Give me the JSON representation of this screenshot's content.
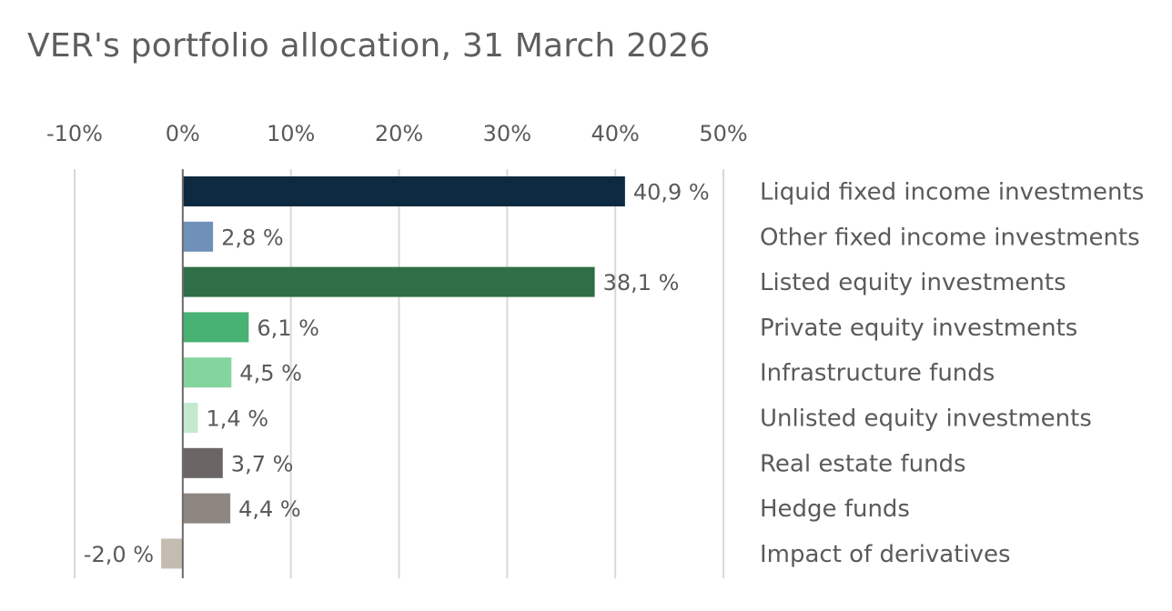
{
  "chart_data": {
    "type": "bar",
    "orientation": "horizontal",
    "title": "VER's portfolio allocation, 31 March 2026",
    "xlabel": "",
    "ylabel": "",
    "xlim": [
      -10,
      50
    ],
    "x_ticks": [
      -10,
      0,
      10,
      20,
      30,
      40,
      50
    ],
    "x_tick_labels": [
      "-10%",
      "0%",
      "10%",
      "20%",
      "30%",
      "40%",
      "50%"
    ],
    "x_axis_position": "top",
    "grid": "vertical",
    "legend": "none",
    "categories": [
      "Liquid fixed income investments",
      "Other fixed income investments",
      "Listed equity investments",
      "Private equity investments",
      "Infrastructure funds",
      "Unlisted equity investments",
      "Real estate funds",
      "Hedge funds",
      "Impact of derivatives"
    ],
    "values": [
      40.9,
      2.8,
      38.1,
      6.1,
      4.5,
      1.4,
      3.7,
      4.4,
      -2.0
    ],
    "value_labels": [
      "40,9 %",
      "2,8 %",
      "38,1 %",
      "6,1 %",
      "4,5 %",
      "1,4 %",
      "3,7 %",
      "4,4 %",
      "-2,0 %"
    ],
    "colors": [
      "#0e2a40",
      "#6f91b8",
      "#2e6f47",
      "#47b274",
      "#84d49d",
      "#c5e8d0",
      "#6b6565",
      "#8e8680",
      "#c5bcb1"
    ]
  }
}
